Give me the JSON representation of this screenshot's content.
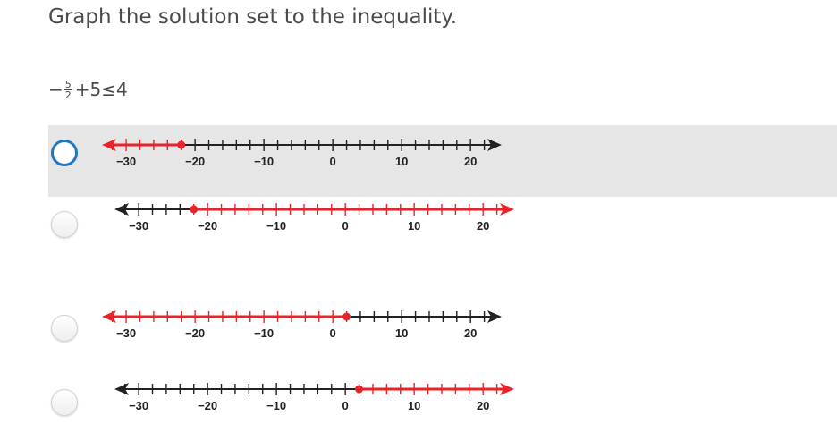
{
  "question": {
    "title": "Graph the solution set to the inequality.",
    "expression": {
      "prefix": "−",
      "numerator": "5",
      "denominator": "2",
      "rest": "+5≤4"
    }
  },
  "colors": {
    "solution": "#e8232a",
    "axis": "#222222",
    "selected_bg": "#e6e6e6",
    "focus_ring": "#1f78c1"
  },
  "options": [
    {
      "id": "a",
      "selected": true,
      "point": -22,
      "direction": "left",
      "tick_labels": [
        "−30",
        "−20",
        "−10",
        "0",
        "10",
        "20"
      ]
    },
    {
      "id": "b",
      "selected": false,
      "point": -22,
      "direction": "right",
      "tick_labels": [
        "−30",
        "−20",
        "−10",
        "0",
        "10",
        "20"
      ]
    },
    {
      "id": "c",
      "selected": false,
      "point": 2,
      "direction": "left",
      "tick_labels": [
        "−30",
        "−20",
        "−10",
        "0",
        "10",
        "20"
      ]
    },
    {
      "id": "d",
      "selected": false,
      "point": 2,
      "direction": "right",
      "tick_labels": [
        "−30",
        "−20",
        "−10",
        "0",
        "10",
        "20"
      ]
    }
  ]
}
